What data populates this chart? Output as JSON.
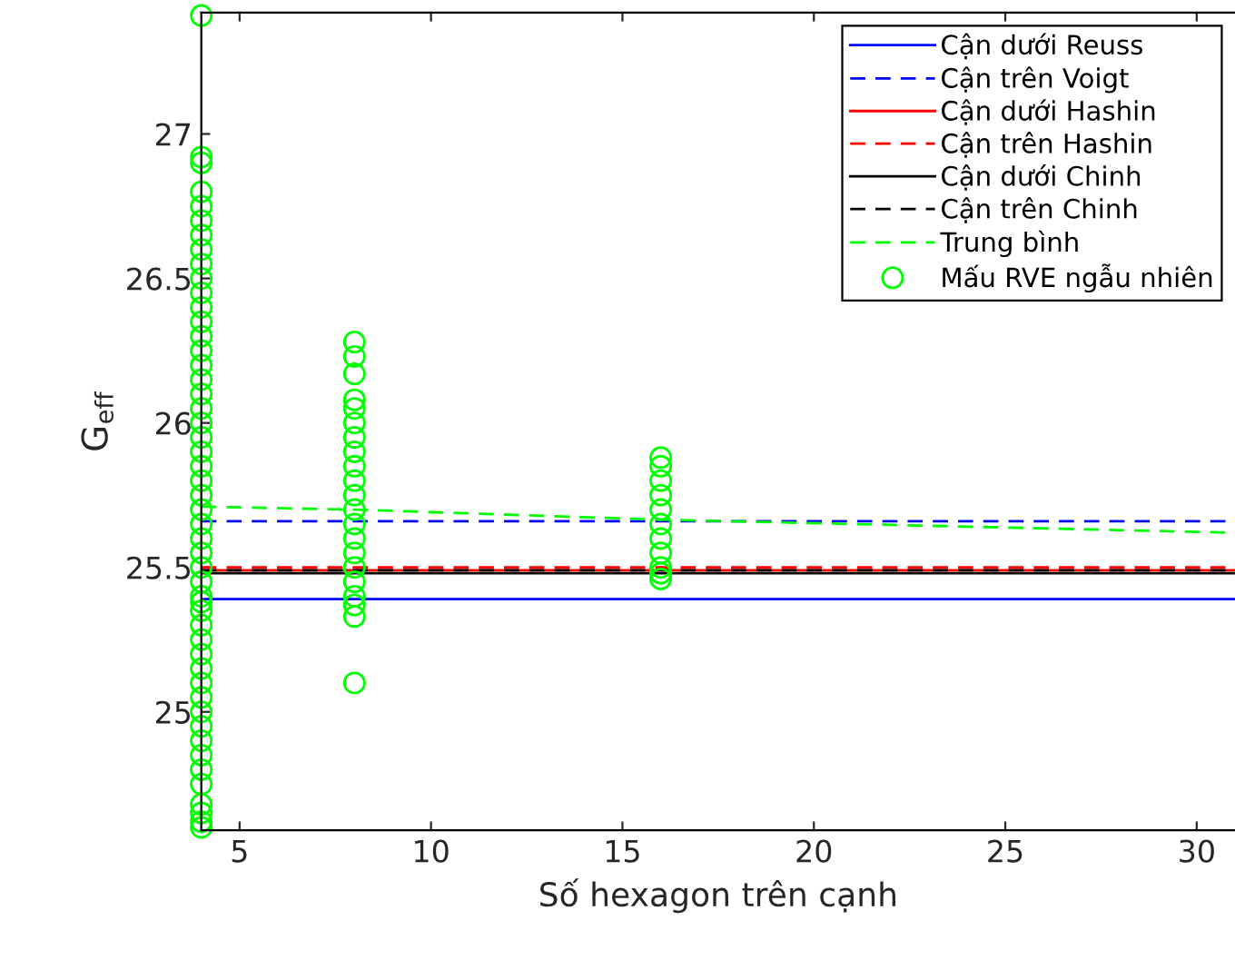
{
  "chart_data": {
    "type": "line",
    "xlabel": "Số hexagon trên cạnh",
    "ylabel": "G$_{eff}$",
    "xlim": [
      4,
      31
    ],
    "ylim": [
      24.59,
      27.42
    ],
    "xticks": [
      5,
      10,
      15,
      20,
      25,
      30
    ],
    "yticks": [
      25,
      25.5,
      26,
      26.5,
      27
    ],
    "grid": false,
    "legend": "top right",
    "series": [
      {
        "name": "Cận dưới Reuss",
        "line_style": "solid",
        "color": "#0000ff",
        "x": [
          4,
          31
        ],
        "values": [
          25.39,
          25.39
        ]
      },
      {
        "name": "Cận trên Voigt",
        "line_style": "dashed",
        "color": "#0000ff",
        "x": [
          4,
          31
        ],
        "values": [
          25.66,
          25.66
        ]
      },
      {
        "name": "Cận dưới Hashin",
        "line_style": "solid",
        "color": "#ff0000",
        "x": [
          4,
          31
        ],
        "values": [
          25.49,
          25.49
        ]
      },
      {
        "name": "Cận trên Hashin",
        "line_style": "dashed",
        "color": "#ff0000",
        "x": [
          4,
          31
        ],
        "values": [
          25.5,
          25.5
        ]
      },
      {
        "name": "Cận dưới Chinh",
        "line_style": "solid",
        "color": "#000000",
        "x": [
          4,
          31
        ],
        "values": [
          25.48,
          25.48
        ]
      },
      {
        "name": "Cận trên Chinh",
        "line_style": "dashed",
        "color": "#000000",
        "x": [
          4,
          31
        ],
        "values": [
          25.49,
          25.49
        ]
      },
      {
        "name": "Trung bình",
        "line_style": "dashed",
        "color": "#00ff00",
        "x": [
          4,
          8,
          16,
          31
        ],
        "values": [
          25.71,
          25.7,
          25.665,
          25.62
        ]
      },
      {
        "name": "Mấu RVE ngẫu nhiên",
        "type": "scatter",
        "marker": "circle",
        "color": "#00ff00",
        "x": [
          4,
          4,
          4,
          4,
          4,
          4,
          4,
          4,
          4,
          4,
          4,
          4,
          4,
          4,
          4,
          4,
          4,
          4,
          4,
          4,
          4,
          4,
          4,
          4,
          4,
          4,
          4,
          4,
          4,
          4,
          4,
          4,
          4,
          4,
          4,
          4,
          4,
          4,
          4,
          4,
          4,
          4,
          4,
          4,
          4,
          4,
          4,
          4,
          4,
          4,
          8,
          8,
          8,
          8,
          8,
          8,
          8,
          8,
          8,
          8,
          8,
          8,
          8,
          8,
          8,
          8,
          8,
          8,
          8,
          8,
          8,
          16,
          16,
          16,
          16,
          16,
          16,
          16,
          16,
          16,
          16,
          16
        ],
        "values": [
          24.6,
          24.62,
          24.65,
          24.68,
          24.75,
          24.8,
          24.85,
          24.9,
          24.95,
          25.0,
          25.05,
          25.1,
          25.15,
          25.2,
          25.25,
          25.3,
          25.35,
          25.4,
          25.45,
          25.5,
          25.55,
          25.6,
          25.65,
          25.7,
          25.75,
          25.8,
          25.85,
          25.9,
          25.95,
          26.0,
          26.05,
          26.1,
          26.15,
          26.2,
          26.25,
          26.3,
          26.35,
          26.4,
          26.45,
          26.5,
          26.55,
          26.6,
          26.65,
          26.7,
          26.75,
          26.8,
          26.9,
          26.92,
          27.41,
          25.38,
          25.1,
          25.33,
          25.37,
          25.4,
          25.45,
          25.5,
          25.55,
          25.6,
          25.65,
          25.7,
          25.75,
          25.8,
          25.85,
          25.9,
          25.95,
          26.0,
          26.05,
          26.08,
          26.17,
          26.23,
          26.28,
          25.46,
          25.48,
          25.5,
          25.55,
          25.6,
          25.65,
          25.7,
          25.75,
          25.8,
          25.85,
          25.88
        ]
      }
    ]
  }
}
